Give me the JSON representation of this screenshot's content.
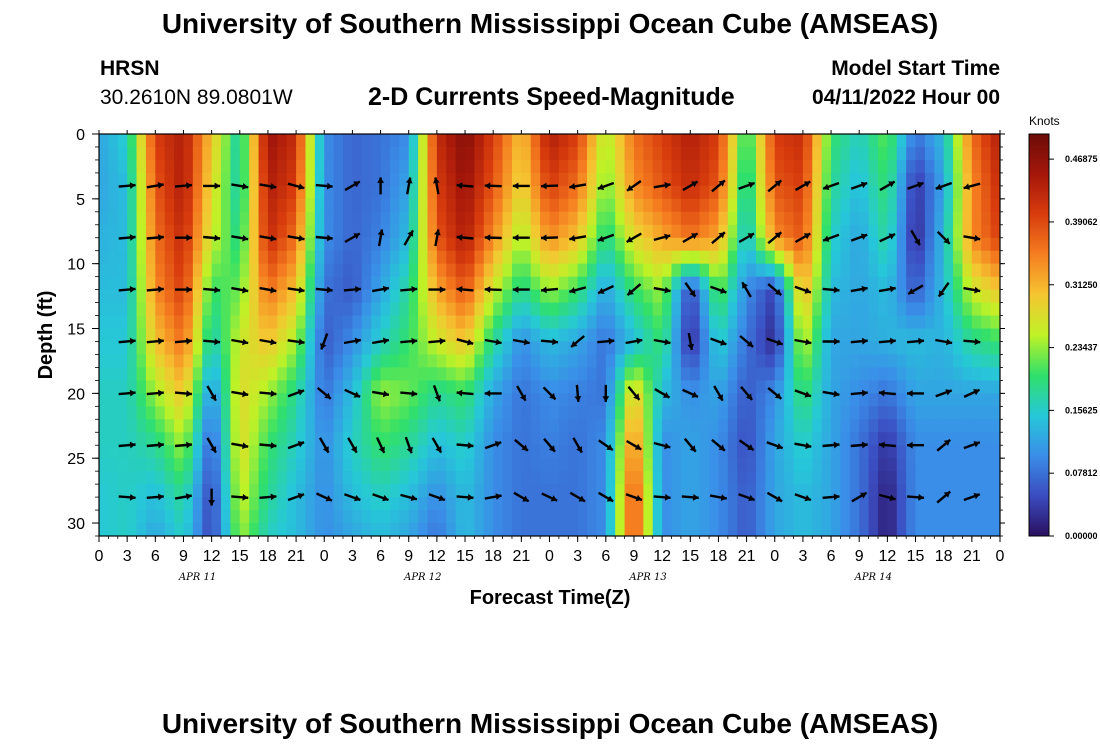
{
  "header": {
    "title": "University of Southern Mississippi Ocean Cube (AMSEAS)",
    "station": "HRSN",
    "coords": "30.2610N  89.0801W",
    "chart_title": "2-D Currents Speed-Magnitude",
    "start_label": "Model Start Time",
    "start_value": "04/11/2022 Hour 00"
  },
  "footer": {
    "title": "University of Southern Mississippi Ocean Cube (AMSEAS)"
  },
  "colors": {
    "background": "#ffffff",
    "axis": "#000000",
    "arrow": "#000000",
    "colormap": [
      "#2a1060",
      "#3b4cc0",
      "#3a8ee8",
      "#26c8d8",
      "#30e06a",
      "#bff226",
      "#f5c531",
      "#f57e20",
      "#d83c0d",
      "#a5170a",
      "#6c0c08"
    ]
  },
  "chart_data": {
    "type": "heatmap",
    "title": "2-D Currents Speed-Magnitude",
    "xlabel": "Forecast Time(Z)",
    "ylabel": "Depth (ft)",
    "xlim": [
      0,
      96
    ],
    "ylim": [
      31,
      0
    ],
    "x_ticks": [
      0,
      3,
      6,
      9,
      12,
      15,
      18,
      21,
      24,
      27,
      30,
      33,
      36,
      39,
      42,
      45,
      48,
      51,
      54,
      57,
      60,
      63,
      66,
      69,
      72,
      75,
      78,
      81,
      84,
      87,
      90,
      93,
      96
    ],
    "x_tick_labels": [
      "0",
      "3",
      "6",
      "9",
      "12",
      "15",
      "18",
      "21",
      "0",
      "3",
      "6",
      "9",
      "12",
      "15",
      "18",
      "21",
      "0",
      "3",
      "6",
      "9",
      "12",
      "15",
      "18",
      "21",
      "0",
      "3",
      "6",
      "9",
      "12",
      "15",
      "18",
      "21",
      "0"
    ],
    "y_ticks": [
      0,
      5,
      10,
      15,
      20,
      25,
      30
    ],
    "y_tick_labels": [
      "0",
      "5",
      "10",
      "15",
      "20",
      "25",
      "30"
    ],
    "day_labels": [
      {
        "x": 10.5,
        "text": "APR 11"
      },
      {
        "x": 34.5,
        "text": "APR 12"
      },
      {
        "x": 58.5,
        "text": "APR 13"
      },
      {
        "x": 82.5,
        "text": "APR 14"
      }
    ],
    "colorbar": {
      "label": "Knots",
      "min": 0.0,
      "max": 0.5,
      "ticks": [
        0.0,
        0.078125,
        0.15625,
        0.234375,
        0.3125,
        0.390625,
        0.46875
      ],
      "tick_labels": [
        "0.00000",
        "0.07812",
        "0.15625",
        "0.23437",
        "0.31250",
        "0.39062",
        "0.46875"
      ]
    },
    "speed_knots": {
      "depths_ft": [
        0,
        4,
        8,
        12,
        16,
        20,
        24,
        28,
        31
      ],
      "times_h": [
        0,
        3,
        6,
        9,
        12,
        15,
        18,
        21,
        24,
        27,
        30,
        33,
        36,
        39,
        42,
        45,
        48,
        51,
        54,
        57,
        60,
        63,
        66,
        69,
        72,
        75,
        78,
        81,
        84,
        87,
        90,
        93,
        96
      ],
      "values": [
        [
          0.12,
          0.16,
          0.4,
          0.44,
          0.3,
          0.16,
          0.46,
          0.42,
          0.1,
          0.07,
          0.08,
          0.1,
          0.42,
          0.48,
          0.4,
          0.3,
          0.44,
          0.4,
          0.24,
          0.36,
          0.4,
          0.44,
          0.4,
          0.18,
          0.4,
          0.42,
          0.2,
          0.16,
          0.22,
          0.08,
          0.14,
          0.36,
          0.44
        ],
        [
          0.12,
          0.14,
          0.38,
          0.44,
          0.28,
          0.16,
          0.44,
          0.4,
          0.1,
          0.07,
          0.08,
          0.12,
          0.4,
          0.46,
          0.38,
          0.28,
          0.4,
          0.36,
          0.22,
          0.34,
          0.38,
          0.42,
          0.38,
          0.16,
          0.38,
          0.4,
          0.18,
          0.14,
          0.2,
          0.03,
          0.12,
          0.34,
          0.42
        ],
        [
          0.13,
          0.14,
          0.36,
          0.42,
          0.26,
          0.18,
          0.42,
          0.36,
          0.1,
          0.07,
          0.09,
          0.14,
          0.38,
          0.44,
          0.34,
          0.24,
          0.34,
          0.3,
          0.18,
          0.28,
          0.32,
          0.36,
          0.32,
          0.14,
          0.34,
          0.38,
          0.16,
          0.12,
          0.18,
          0.02,
          0.14,
          0.34,
          0.4
        ],
        [
          0.14,
          0.14,
          0.34,
          0.4,
          0.2,
          0.22,
          0.36,
          0.3,
          0.08,
          0.06,
          0.12,
          0.18,
          0.32,
          0.38,
          0.26,
          0.18,
          0.24,
          0.2,
          0.12,
          0.2,
          0.24,
          0.04,
          0.22,
          0.1,
          0.04,
          0.32,
          0.14,
          0.12,
          0.14,
          0.06,
          0.14,
          0.26,
          0.3
        ],
        [
          0.15,
          0.15,
          0.3,
          0.36,
          0.16,
          0.26,
          0.3,
          0.24,
          0.06,
          0.1,
          0.16,
          0.2,
          0.26,
          0.3,
          0.18,
          0.1,
          0.14,
          0.12,
          0.08,
          0.14,
          0.2,
          0.02,
          0.16,
          0.08,
          0.02,
          0.26,
          0.12,
          0.12,
          0.13,
          0.14,
          0.13,
          0.18,
          0.2
        ],
        [
          0.16,
          0.16,
          0.24,
          0.3,
          0.1,
          0.28,
          0.24,
          0.18,
          0.08,
          0.14,
          0.24,
          0.22,
          0.18,
          0.2,
          0.12,
          0.08,
          0.1,
          0.09,
          0.08,
          0.3,
          0.14,
          0.1,
          0.12,
          0.06,
          0.1,
          0.2,
          0.12,
          0.1,
          0.08,
          0.12,
          0.12,
          0.12,
          0.12
        ],
        [
          0.16,
          0.16,
          0.18,
          0.24,
          0.06,
          0.28,
          0.2,
          0.16,
          0.1,
          0.16,
          0.2,
          0.18,
          0.14,
          0.16,
          0.1,
          0.08,
          0.09,
          0.08,
          0.1,
          0.36,
          0.1,
          0.12,
          0.1,
          0.05,
          0.12,
          0.16,
          0.12,
          0.08,
          0.03,
          0.1,
          0.1,
          0.1,
          0.1
        ],
        [
          0.15,
          0.16,
          0.14,
          0.18,
          0.04,
          0.26,
          0.18,
          0.14,
          0.1,
          0.14,
          0.16,
          0.14,
          0.1,
          0.14,
          0.1,
          0.08,
          0.08,
          0.08,
          0.1,
          0.4,
          0.1,
          0.12,
          0.1,
          0.06,
          0.12,
          0.14,
          0.12,
          0.08,
          0.01,
          0.1,
          0.1,
          0.1,
          0.1
        ],
        [
          0.15,
          0.16,
          0.12,
          0.16,
          0.04,
          0.24,
          0.16,
          0.14,
          0.1,
          0.12,
          0.14,
          0.12,
          0.08,
          0.14,
          0.1,
          0.08,
          0.08,
          0.08,
          0.1,
          0.4,
          0.1,
          0.12,
          0.1,
          0.06,
          0.12,
          0.14,
          0.12,
          0.08,
          0.01,
          0.1,
          0.1,
          0.1,
          0.1
        ]
      ]
    },
    "vectors": {
      "depths_ft": [
        4,
        8,
        12,
        16,
        20,
        24,
        28
      ],
      "times_h": [
        3,
        6,
        9,
        12,
        15,
        18,
        21,
        24,
        27,
        30,
        33,
        36,
        39,
        42,
        45,
        48,
        51,
        54,
        57,
        60,
        63,
        66,
        69,
        72,
        75,
        78,
        81,
        84,
        87,
        90,
        93
      ],
      "direction_deg": [
        [
          5,
          10,
          5,
          0,
          350,
          350,
          345,
          355,
          30,
          90,
          80,
          100,
          175,
          178,
          180,
          182,
          190,
          200,
          215,
          10,
          30,
          40,
          20,
          40,
          30,
          200,
          20,
          30,
          20,
          200,
          195
        ],
        [
          5,
          5,
          0,
          355,
          350,
          350,
          350,
          355,
          30,
          80,
          60,
          80,
          175,
          178,
          180,
          182,
          190,
          200,
          210,
          15,
          30,
          40,
          30,
          40,
          30,
          200,
          20,
          25,
          300,
          315,
          350
        ],
        [
          5,
          5,
          0,
          355,
          350,
          350,
          352,
          355,
          5,
          10,
          5,
          0,
          175,
          178,
          180,
          185,
          195,
          205,
          220,
          350,
          305,
          340,
          120,
          320,
          340,
          355,
          10,
          10,
          210,
          235,
          350
        ],
        [
          5,
          5,
          5,
          355,
          350,
          350,
          352,
          250,
          10,
          10,
          5,
          5,
          345,
          350,
          350,
          355,
          220,
          5,
          10,
          350,
          280,
          340,
          320,
          340,
          350,
          0,
          5,
          5,
          5,
          350,
          355
        ],
        [
          5,
          5,
          355,
          300,
          350,
          355,
          20,
          320,
          335,
          350,
          355,
          290,
          175,
          180,
          300,
          315,
          275,
          270,
          310,
          330,
          335,
          300,
          310,
          320,
          340,
          350,
          5,
          175,
          180,
          20,
          25
        ],
        [
          5,
          5,
          5,
          300,
          350,
          355,
          20,
          300,
          300,
          295,
          290,
          300,
          355,
          20,
          320,
          310,
          300,
          325,
          330,
          345,
          310,
          320,
          325,
          340,
          350,
          5,
          5,
          175,
          180,
          40,
          20
        ],
        [
          355,
          5,
          10,
          270,
          355,
          5,
          20,
          335,
          340,
          340,
          345,
          340,
          355,
          10,
          330,
          335,
          330,
          330,
          340,
          355,
          355,
          350,
          340,
          330,
          340,
          5,
          30,
          345,
          355,
          40,
          20
        ]
      ]
    }
  }
}
